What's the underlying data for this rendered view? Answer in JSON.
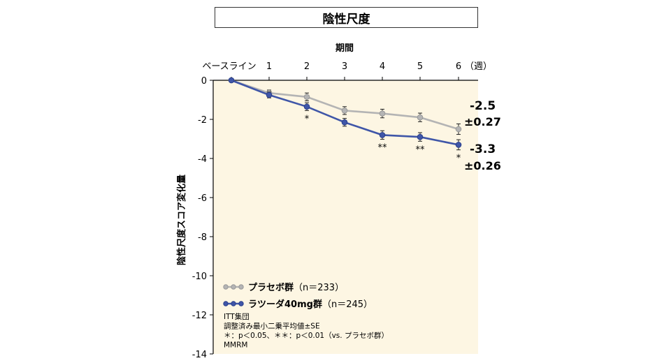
{
  "title": "陰性尺度",
  "chart_data": {
    "type": "line",
    "xlabel": "期間",
    "x_unit": "（週）",
    "ylabel": "陰性尺度スコア変化量",
    "categories": [
      "ベースライン",
      "1",
      "2",
      "3",
      "4",
      "5",
      "6"
    ],
    "ylim": [
      -14,
      0
    ],
    "yticks": [
      "0",
      "-2",
      "-4",
      "-6",
      "-8",
      "-10",
      "-12",
      "-14"
    ],
    "ytick_values": [
      0,
      -2,
      -4,
      -6,
      -8,
      -10,
      -12,
      -14
    ],
    "series": [
      {
        "name": "プラセボ群",
        "n_label": "（n＝233）",
        "color": "#b4b4b4",
        "values": [
          0,
          -0.65,
          -0.85,
          -1.55,
          -1.7,
          -1.9,
          -2.5
        ],
        "errors": [
          0,
          0.15,
          0.2,
          0.2,
          0.22,
          0.22,
          0.27
        ],
        "sig": [
          "",
          "",
          "",
          "",
          "",
          "",
          ""
        ]
      },
      {
        "name": "ラツーダ40mg群",
        "n_label": "（n＝245）",
        "color": "#3f56a8",
        "values": [
          0,
          -0.75,
          -1.35,
          -2.15,
          -2.8,
          -2.9,
          -3.3
        ],
        "errors": [
          0,
          0.15,
          0.2,
          0.2,
          0.22,
          0.22,
          0.26
        ],
        "sig": [
          "",
          "",
          "*",
          "",
          "**",
          "**",
          "*"
        ]
      }
    ],
    "annotations": [
      {
        "value": "-2.5",
        "sd": "±0.27"
      },
      {
        "value": "-3.3",
        "sd": "±0.26"
      }
    ],
    "notes": [
      "ITT集団",
      "調整済み最小二乗平均値±SE",
      "＊：p＜0.05、＊＊：p＜0.01（vs. プラセボ群）",
      "MMRM"
    ],
    "colors": {
      "plot_bg": "#fdf6e3",
      "axis": "#000000"
    }
  }
}
